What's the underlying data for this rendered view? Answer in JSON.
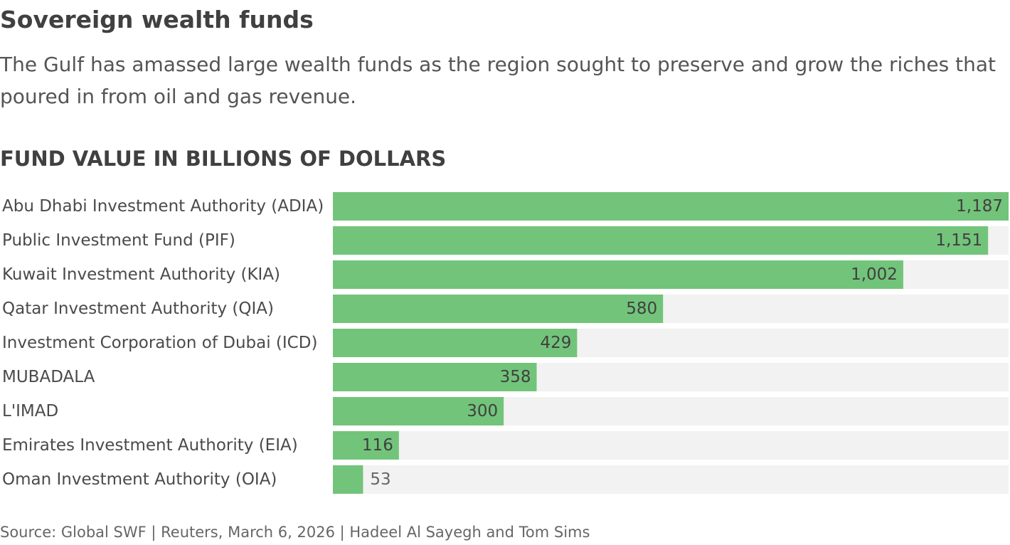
{
  "title": "Sovereign wealth funds",
  "subtitle": "The Gulf has amassed large wealth funds as the region sought to preserve and grow the riches that poured in from oil and gas revenue.",
  "section_heading": "FUND VALUE IN BILLIONS OF DOLLARS",
  "source": "Source: Global SWF | Reuters, March 6, 2026 | Hadeel Al Sayegh and Tom Sims",
  "colors": {
    "bar": "#72c47a",
    "track": "#f2f2f2",
    "label": "#4a4a4a",
    "value_text": "#404040"
  },
  "chart_data": {
    "type": "bar",
    "orientation": "horizontal",
    "categories": [
      "Abu Dhabi Investment Authority (ADIA)",
      "Public Investment Fund (PIF)",
      "Kuwait Investment Authority (KIA)",
      "Qatar Investment Authority (QIA)",
      "Investment Corporation of Dubai (ICD)",
      "MUBADALA",
      "L'IMAD",
      "Emirates Investment Authority (EIA)",
      "Oman Investment Authority (OIA)"
    ],
    "values": [
      1187,
      1151,
      1002,
      580,
      429,
      358,
      300,
      116,
      53
    ],
    "value_labels": [
      "1,187",
      "1,151",
      "1,002",
      "580",
      "429",
      "358",
      "300",
      "116",
      "53"
    ],
    "xlim": [
      0,
      1187
    ],
    "grid": false,
    "legend": "none"
  }
}
